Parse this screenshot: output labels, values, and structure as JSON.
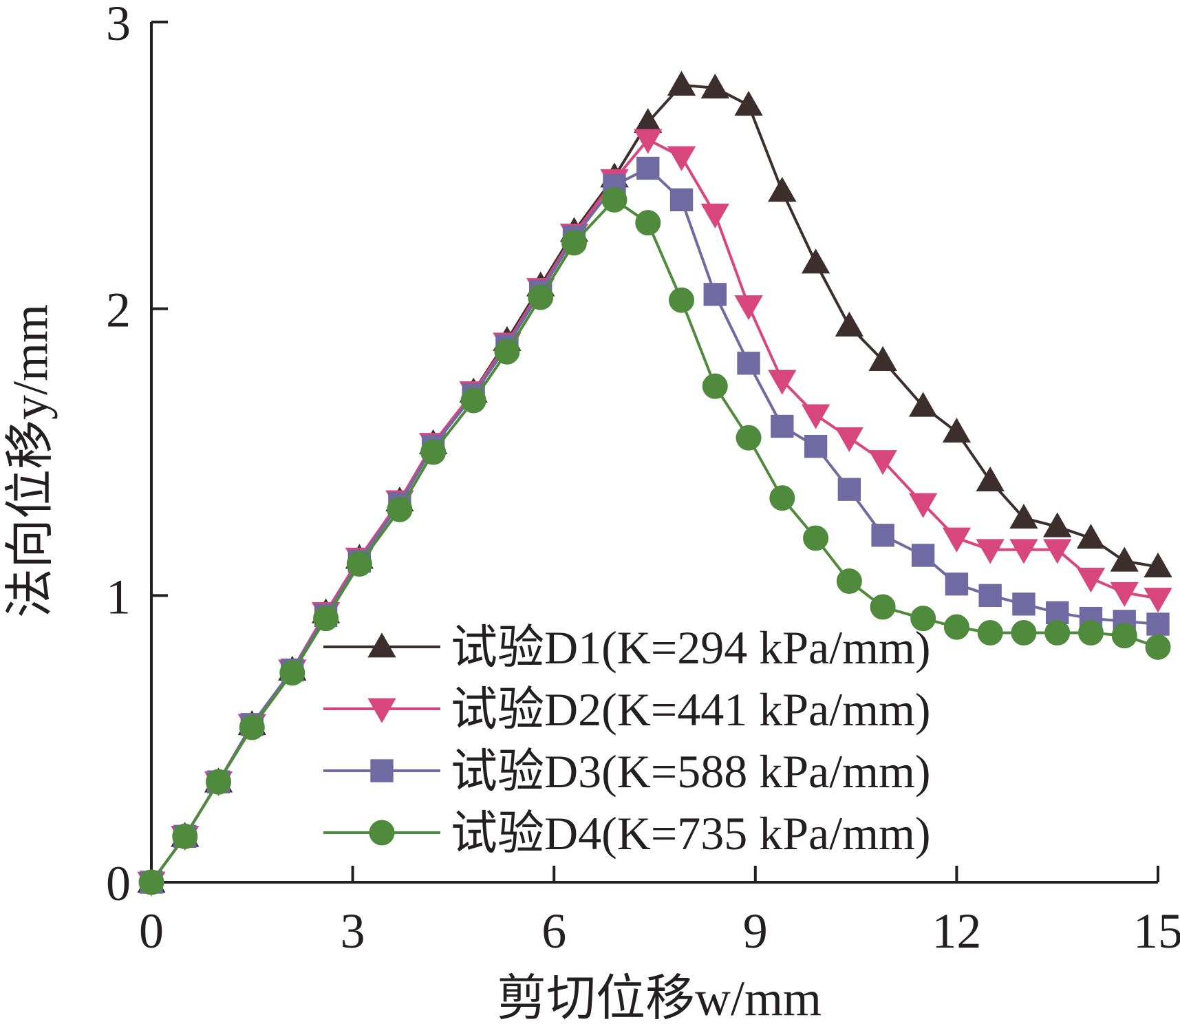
{
  "chart_data": {
    "type": "line",
    "xlabel": "剪切位移w/mm",
    "ylabel": "法向位移y/mm",
    "xlim": [
      0,
      15
    ],
    "ylim": [
      0,
      3
    ],
    "xticks": [
      "0",
      "3",
      "6",
      "9",
      "12",
      "15"
    ],
    "yticks": [
      "0",
      "1",
      "2",
      "3"
    ],
    "grid": false,
    "legend_position": "bottom-right",
    "series": [
      {
        "name": "试验D1(K=294 kPa/mm)",
        "color": "#3b2e2c",
        "marker": "triangle-up",
        "x": [
          0,
          0.5,
          1.0,
          1.5,
          2.1,
          2.6,
          3.1,
          3.7,
          4.2,
          4.8,
          5.3,
          5.8,
          6.3,
          6.9,
          7.4,
          7.9,
          8.4,
          8.9,
          9.4,
          9.9,
          10.4,
          10.9,
          11.5,
          12.0,
          12.5,
          13.0,
          13.5,
          14.0,
          14.5,
          15.0
        ],
        "y": [
          0,
          0.16,
          0.35,
          0.55,
          0.74,
          0.94,
          1.13,
          1.33,
          1.53,
          1.71,
          1.89,
          2.08,
          2.27,
          2.46,
          2.65,
          2.78,
          2.77,
          2.71,
          2.41,
          2.16,
          1.94,
          1.82,
          1.66,
          1.57,
          1.4,
          1.27,
          1.24,
          1.2,
          1.12,
          1.1
        ]
      },
      {
        "name": "试验D2(K=441 kPa/mm)",
        "color": "#d8467e",
        "marker": "triangle-down",
        "x": [
          0,
          0.5,
          1.0,
          1.5,
          2.1,
          2.6,
          3.1,
          3.7,
          4.2,
          4.8,
          5.3,
          5.8,
          6.3,
          6.9,
          7.4,
          7.9,
          8.4,
          8.9,
          9.4,
          9.9,
          10.4,
          10.9,
          11.5,
          12.0,
          12.5,
          13.0,
          13.5,
          14.0,
          14.5,
          15.0
        ],
        "y": [
          0,
          0.16,
          0.35,
          0.55,
          0.74,
          0.94,
          1.13,
          1.33,
          1.53,
          1.71,
          1.88,
          2.07,
          2.26,
          2.45,
          2.59,
          2.53,
          2.33,
          2.01,
          1.75,
          1.63,
          1.55,
          1.47,
          1.32,
          1.2,
          1.16,
          1.16,
          1.16,
          1.06,
          1.01,
          0.99
        ]
      },
      {
        "name": "试验D3(K=588 kPa/mm)",
        "color": "#6f6aa1",
        "marker": "square",
        "x": [
          0,
          0.5,
          1.0,
          1.5,
          2.1,
          2.6,
          3.1,
          3.7,
          4.2,
          4.8,
          5.3,
          5.8,
          6.3,
          6.9,
          7.4,
          7.9,
          8.4,
          8.9,
          9.4,
          9.9,
          10.4,
          10.9,
          11.5,
          12.0,
          12.5,
          13.0,
          13.5,
          14.0,
          14.5,
          15.0
        ],
        "y": [
          0,
          0.16,
          0.35,
          0.55,
          0.74,
          0.93,
          1.12,
          1.32,
          1.52,
          1.7,
          1.87,
          2.06,
          2.25,
          2.43,
          2.49,
          2.38,
          2.05,
          1.81,
          1.59,
          1.52,
          1.37,
          1.21,
          1.14,
          1.04,
          1.0,
          0.97,
          0.94,
          0.92,
          0.91,
          0.9
        ]
      },
      {
        "name": "试验D4(K=735 kPa/mm)",
        "color": "#4f8a3d",
        "marker": "circle",
        "x": [
          0,
          0.5,
          1.0,
          1.5,
          2.1,
          2.6,
          3.1,
          3.7,
          4.2,
          4.8,
          5.3,
          5.8,
          6.3,
          6.9,
          7.4,
          7.9,
          8.4,
          8.9,
          9.4,
          9.9,
          10.4,
          10.9,
          11.5,
          12.0,
          12.5,
          13.0,
          13.5,
          14.0,
          14.5,
          15.0
        ],
        "y": [
          0,
          0.16,
          0.35,
          0.54,
          0.73,
          0.92,
          1.11,
          1.3,
          1.5,
          1.68,
          1.85,
          2.04,
          2.23,
          2.38,
          2.3,
          2.03,
          1.73,
          1.55,
          1.34,
          1.2,
          1.05,
          0.96,
          0.92,
          0.89,
          0.87,
          0.87,
          0.87,
          0.87,
          0.86,
          0.82
        ]
      }
    ]
  }
}
